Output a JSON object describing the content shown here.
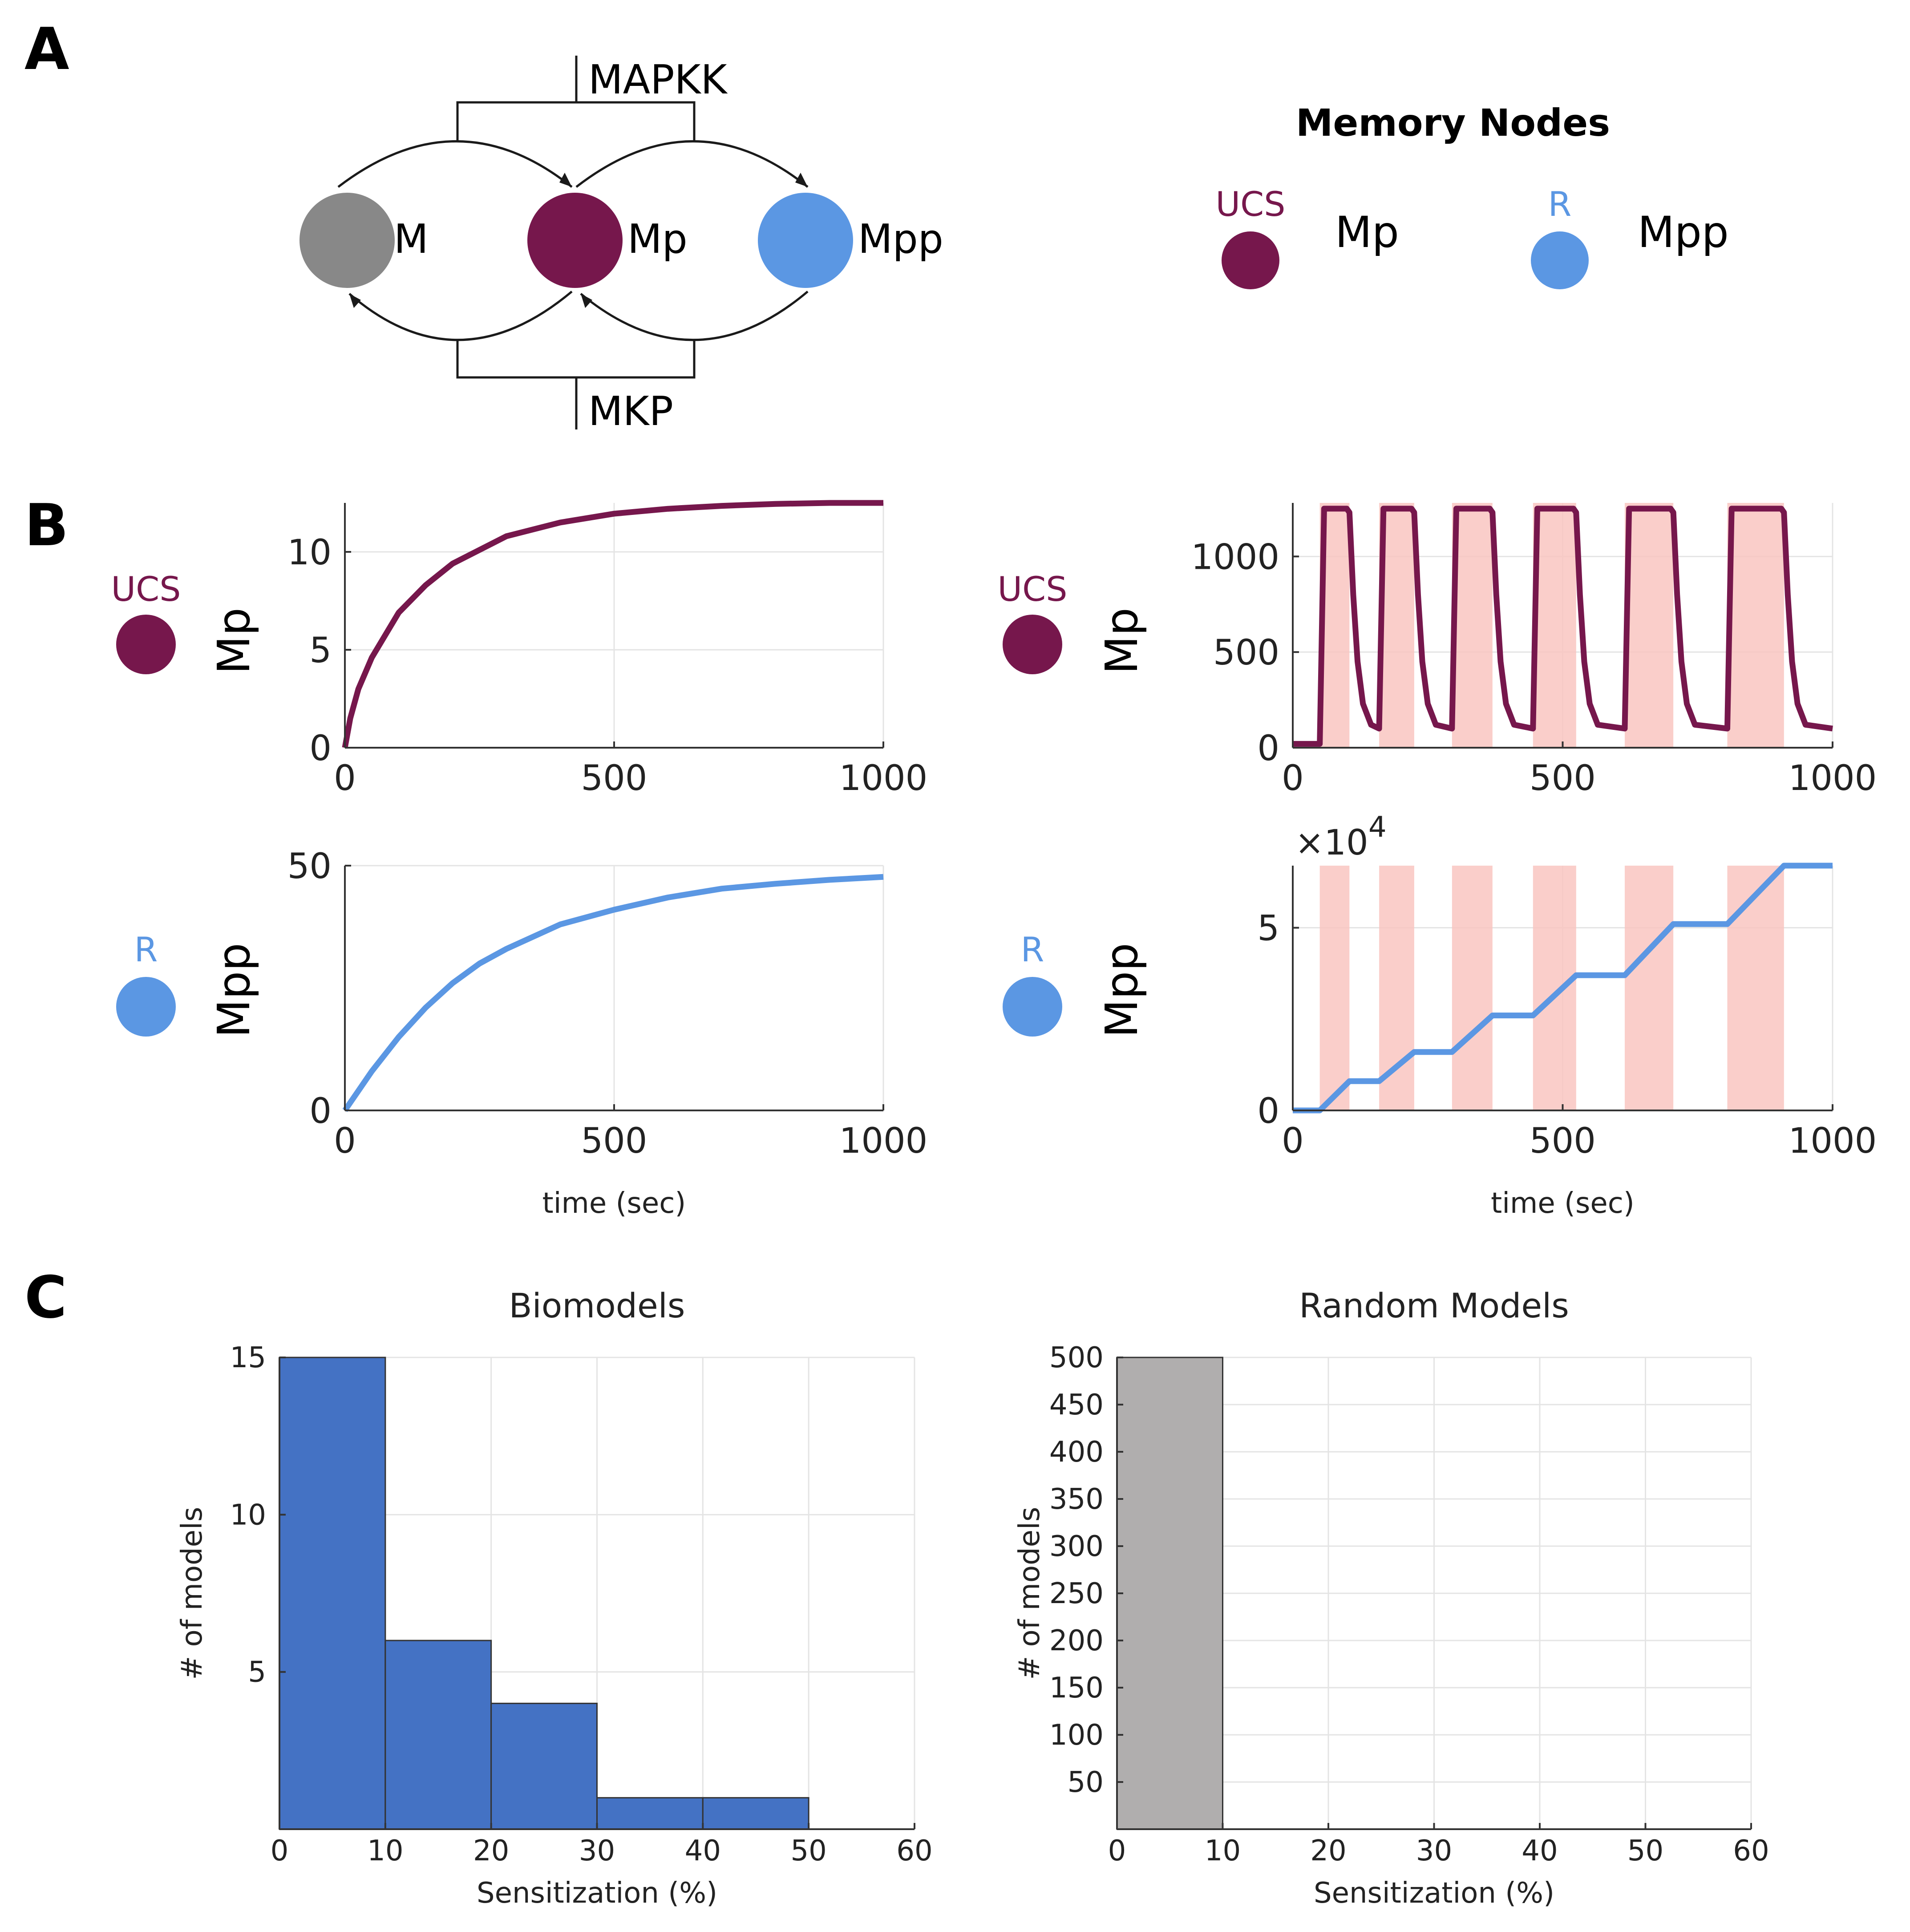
{
  "panels": {
    "a": "A",
    "b": "B",
    "c": "C"
  },
  "diagram": {
    "nodes": [
      {
        "label": "M",
        "color": "#888888"
      },
      {
        "label": "Mp",
        "color": "#76174c"
      },
      {
        "label": "Mpp",
        "color": "#5b97e3"
      }
    ],
    "enzymes": {
      "top": "MAPKK",
      "bottom": "MKP"
    }
  },
  "memory_nodes": {
    "title": "Memory Nodes",
    "items": [
      {
        "tag": "UCS",
        "label": "Mp",
        "color": "#76174c"
      },
      {
        "tag": "R",
        "label": "Mpp",
        "color": "#5b97e3"
      }
    ]
  },
  "row_labels": {
    "ucs_tag": "UCS",
    "r_tag": "R",
    "mp": "Mp",
    "mpp": "Mpp"
  },
  "colors": {
    "ucs": "#76174c",
    "r": "#5b97e3",
    "pulse": "#f9c6c1",
    "bio_bar": "#4472c4",
    "rand_bar": "#b0aeae"
  },
  "chart_data": [
    {
      "id": "b1",
      "type": "line",
      "title": "",
      "xlabel": "",
      "ylabel": "Mp",
      "xlim": [
        0,
        1000
      ],
      "ylim": [
        0,
        12.5
      ],
      "xticks": [
        "0",
        "500",
        "1000"
      ],
      "yticks": [
        "0",
        "5",
        "10"
      ],
      "series": [
        {
          "name": "Mp",
          "x": [
            0,
            10,
            25,
            50,
            100,
            150,
            200,
            300,
            400,
            500,
            600,
            700,
            800,
            900,
            1000
          ],
          "y": [
            0,
            1.5,
            3.0,
            4.6,
            6.9,
            8.3,
            9.4,
            10.8,
            11.5,
            11.95,
            12.2,
            12.35,
            12.45,
            12.5,
            12.55
          ]
        }
      ]
    },
    {
      "id": "b2",
      "type": "line",
      "title": "",
      "xlabel": "",
      "ylabel": "Mp",
      "xlim": [
        0,
        1000
      ],
      "ylim": [
        0,
        1280
      ],
      "xticks": [
        "0",
        "500",
        "1000"
      ],
      "yticks": [
        "0",
        "500",
        "1000"
      ],
      "pulses": [
        [
          50,
          105
        ],
        [
          160,
          225
        ],
        [
          295,
          370
        ],
        [
          445,
          525
        ],
        [
          615,
          705
        ],
        [
          805,
          910
        ]
      ],
      "series": [
        {
          "name": "Mp",
          "x": [
            0,
            50,
            58,
            100,
            105,
            112,
            120,
            130,
            145,
            160,
            168,
            220,
            225,
            232,
            240,
            250,
            265,
            295,
            303,
            365,
            370,
            377,
            385,
            395,
            410,
            445,
            453,
            520,
            525,
            532,
            540,
            550,
            565,
            615,
            623,
            700,
            705,
            712,
            720,
            730,
            745,
            805,
            813,
            905,
            910,
            917,
            925,
            935,
            950,
            1000
          ],
          "y": [
            20,
            20,
            1250,
            1250,
            1230,
            800,
            450,
            230,
            120,
            100,
            1250,
            1250,
            1230,
            800,
            450,
            230,
            120,
            100,
            1250,
            1250,
            1230,
            800,
            450,
            230,
            120,
            100,
            1250,
            1250,
            1230,
            800,
            450,
            230,
            120,
            100,
            1250,
            1250,
            1230,
            800,
            450,
            230,
            120,
            100,
            1250,
            1250,
            1230,
            800,
            450,
            230,
            120,
            100
          ]
        }
      ]
    },
    {
      "id": "b3",
      "type": "line",
      "title": "",
      "xlabel": "time (sec)",
      "ylabel": "Mpp",
      "xlim": [
        0,
        1000
      ],
      "ylim": [
        0,
        50
      ],
      "xticks": [
        "0",
        "500",
        "1000"
      ],
      "yticks": [
        "0",
        "50"
      ],
      "series": [
        {
          "name": "Mpp",
          "x": [
            0,
            25,
            50,
            100,
            150,
            200,
            250,
            300,
            400,
            500,
            600,
            700,
            800,
            900,
            1000
          ],
          "y": [
            0,
            4,
            8,
            15,
            21,
            26,
            30,
            33,
            38,
            41,
            43.5,
            45.3,
            46.3,
            47.1,
            47.7
          ]
        }
      ]
    },
    {
      "id": "b4",
      "type": "line",
      "title": "",
      "xlabel": "time (sec)",
      "ylabel": "Mpp",
      "xlim": [
        0,
        1000
      ],
      "ylim": [
        0,
        6.7
      ],
      "yscale": "×10",
      "yscale_exp": "4",
      "xticks": [
        "0",
        "500",
        "1000"
      ],
      "yticks": [
        "0",
        "5"
      ],
      "pulses": [
        [
          50,
          105
        ],
        [
          160,
          225
        ],
        [
          295,
          370
        ],
        [
          445,
          525
        ],
        [
          615,
          705
        ],
        [
          805,
          910
        ]
      ],
      "series": [
        {
          "name": "Mpp",
          "x": [
            0,
            50,
            105,
            160,
            225,
            295,
            370,
            445,
            525,
            615,
            705,
            805,
            910,
            1000
          ],
          "y": [
            0,
            0,
            0.8,
            0.8,
            1.6,
            1.6,
            2.6,
            2.6,
            3.7,
            3.7,
            5.1,
            5.1,
            6.7,
            6.7
          ]
        }
      ]
    },
    {
      "id": "c1",
      "type": "bar",
      "title": "Biomodels",
      "xlabel": "Sensitization (%)",
      "ylabel": "# of models",
      "xlim": [
        0,
        60
      ],
      "ylim": [
        0,
        15
      ],
      "xticks": [
        "0",
        "10",
        "20",
        "30",
        "40",
        "50",
        "60"
      ],
      "yticks": [
        "5",
        "10",
        "15"
      ],
      "bin_edges": [
        0,
        10,
        20,
        30,
        40,
        50
      ],
      "values": [
        15,
        6,
        4,
        1,
        1
      ]
    },
    {
      "id": "c2",
      "type": "bar",
      "title": "Random Models",
      "xlabel": "Sensitization (%)",
      "ylabel": "# of models",
      "xlim": [
        0,
        60
      ],
      "ylim": [
        0,
        500
      ],
      "xticks": [
        "0",
        "10",
        "20",
        "30",
        "40",
        "50",
        "60"
      ],
      "yticks": [
        "50",
        "100",
        "150",
        "200",
        "250",
        "300",
        "350",
        "400",
        "450",
        "500"
      ],
      "bin_edges": [
        0,
        10
      ],
      "values": [
        500
      ]
    }
  ]
}
